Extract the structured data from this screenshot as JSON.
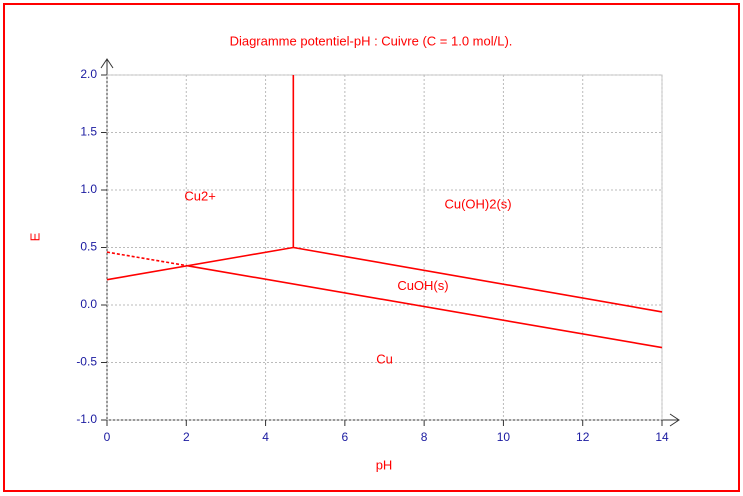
{
  "chart_data": {
    "type": "line",
    "title": "Diagramme potentiel-pH  : Cuivre (C = 1.0 mol/L).",
    "x_label": "pH",
    "y_label": "E",
    "xlim": [
      0,
      14
    ],
    "xticks": [
      0,
      2,
      4,
      6,
      8,
      10,
      12,
      14
    ],
    "ylim": [
      -1.0,
      2.0
    ],
    "yticks": [
      {
        "value": -1.0,
        "label": "-1.0"
      },
      -0.5,
      {
        "value": 0.0,
        "label": "0.0"
      },
      0.5,
      {
        "value": 1.0,
        "label": "1.0"
      },
      1.5,
      {
        "value": 2.0,
        "label": "2.0"
      }
    ],
    "grid": true,
    "series": [
      {
        "color": "#ff0000",
        "x": [
          4.7,
          4.7
        ],
        "values": [
          0.5,
          2.0
        ]
      },
      {
        "color": "#ff0000",
        "x": [
          0,
          4.7
        ],
        "values": [
          0.22,
          0.5
        ]
      },
      {
        "color": "#ff0000",
        "x": [
          4.7,
          14
        ],
        "values": [
          0.5,
          -0.06
        ]
      },
      {
        "color": "#ff0000",
        "dashed": true,
        "x": [
          0,
          2.05
        ],
        "values": [
          0.46,
          0.34
        ]
      },
      {
        "color": "#ff0000",
        "x": [
          2.05,
          14
        ],
        "values": [
          0.34,
          -0.37
        ]
      }
    ],
    "annotations": [
      {
        "text": "Cu2+",
        "x": 2.35,
        "y": 0.94
      },
      {
        "text": "Cu(OH)2(s)",
        "x": 9.36,
        "y": 0.87
      },
      {
        "text": "CuOH(s)",
        "x": 7.97,
        "y": 0.16
      },
      {
        "text": "Cu",
        "x": 7.0,
        "y": -0.48
      }
    ]
  }
}
